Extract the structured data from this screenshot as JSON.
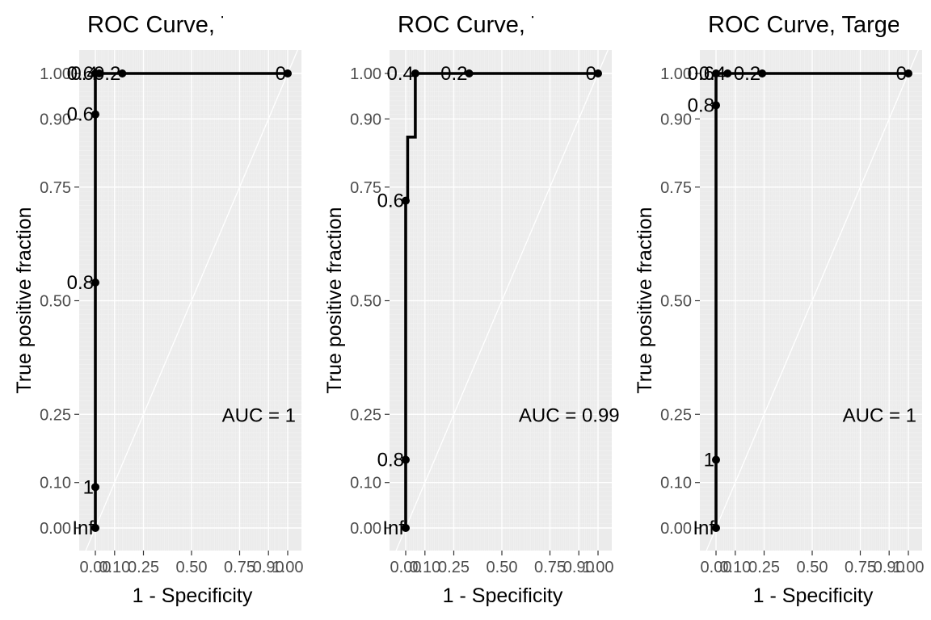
{
  "chart_data": [
    {
      "type": "line",
      "title": "ROC Curve, Target",
      "xlabel": "1 - Specificity",
      "ylabel": "True positive fraction",
      "xlim": [
        0,
        1
      ],
      "ylim": [
        0,
        1
      ],
      "x_ticks": [
        0.0,
        0.1,
        0.25,
        0.5,
        0.75,
        0.9,
        1.0
      ],
      "x_tick_labels": [
        "0.00",
        "0.10",
        "0.25",
        "0.50",
        "0.75",
        "0.90",
        "1.00"
      ],
      "y_ticks": [
        0.0,
        0.1,
        0.25,
        0.5,
        0.75,
        0.9,
        1.0
      ],
      "y_tick_labels": [
        "0.00",
        "0.10",
        "0.25",
        "0.50",
        "0.75",
        "0.90",
        "1.00"
      ],
      "auc_label": "AUC = 1",
      "curve": [
        [
          0,
          0
        ],
        [
          0,
          0.09
        ],
        [
          0,
          0.54
        ],
        [
          0,
          0.91
        ],
        [
          0,
          1.0
        ],
        [
          0.02,
          1.0
        ],
        [
          0.14,
          1.0
        ],
        [
          1.0,
          1.0
        ]
      ],
      "cutoff_labels": [
        {
          "x": 0,
          "y": 0.0,
          "label": "Inf"
        },
        {
          "x": 0,
          "y": 0.09,
          "label": "1"
        },
        {
          "x": 0,
          "y": 0.54,
          "label": "0.8"
        },
        {
          "x": 0,
          "y": 0.91,
          "label": "0.6"
        },
        {
          "x": 0,
          "y": 1.0,
          "label": "0.6"
        },
        {
          "x": 0.02,
          "y": 1.0,
          "label": "0.4"
        },
        {
          "x": 0.14,
          "y": 1.0,
          "label": "0.2"
        },
        {
          "x": 1.0,
          "y": 1.0,
          "label": "0"
        }
      ],
      "grid": true,
      "diagonal_reference": true
    },
    {
      "type": "line",
      "title": "ROC Curve, Target",
      "xlabel": "1 - Specificity",
      "ylabel": "True positive fraction",
      "xlim": [
        0,
        1
      ],
      "ylim": [
        0,
        1
      ],
      "x_ticks": [
        0.0,
        0.1,
        0.25,
        0.5,
        0.75,
        0.9,
        1.0
      ],
      "x_tick_labels": [
        "0.00",
        "0.10",
        "0.25",
        "0.50",
        "0.75",
        "0.90",
        "1.00"
      ],
      "y_ticks": [
        0.0,
        0.1,
        0.25,
        0.5,
        0.75,
        0.9,
        1.0
      ],
      "y_tick_labels": [
        "0.00",
        "0.10",
        "0.25",
        "0.50",
        "0.75",
        "0.90",
        "1.00"
      ],
      "auc_label": "AUC = 0.99",
      "curve": [
        [
          0,
          0
        ],
        [
          0,
          0.15
        ],
        [
          0,
          0.72
        ],
        [
          0.01,
          0.72
        ],
        [
          0.01,
          0.86
        ],
        [
          0.05,
          0.86
        ],
        [
          0.05,
          1.0
        ],
        [
          0.33,
          1.0
        ],
        [
          1.0,
          1.0
        ]
      ],
      "cutoff_labels": [
        {
          "x": 0,
          "y": 0.0,
          "label": "Inf"
        },
        {
          "x": 0,
          "y": 0.15,
          "label": "0.8"
        },
        {
          "x": 0,
          "y": 0.72,
          "label": "0.6"
        },
        {
          "x": 0.05,
          "y": 1.0,
          "label": "0.4"
        },
        {
          "x": 0.33,
          "y": 1.0,
          "label": "0.2"
        },
        {
          "x": 1.0,
          "y": 1.0,
          "label": "0"
        }
      ],
      "grid": true,
      "diagonal_reference": true
    },
    {
      "type": "line",
      "title": "ROC Curve, Target",
      "xlabel": "1 - Specificity",
      "ylabel": "True positive fraction",
      "xlim": [
        0,
        1
      ],
      "ylim": [
        0,
        1
      ],
      "x_ticks": [
        0.0,
        0.1,
        0.25,
        0.5,
        0.75,
        0.9,
        1.0
      ],
      "x_tick_labels": [
        "0.00",
        "0.10",
        "0.25",
        "0.50",
        "0.75",
        "0.90",
        "1.00"
      ],
      "y_ticks": [
        0.0,
        0.1,
        0.25,
        0.5,
        0.75,
        0.9,
        1.0
      ],
      "y_tick_labels": [
        "0.00",
        "0.10",
        "0.25",
        "0.50",
        "0.75",
        "0.90",
        "1.00"
      ],
      "auc_label": "AUC = 1",
      "curve": [
        [
          0,
          0
        ],
        [
          0,
          0.15
        ],
        [
          0,
          0.93
        ],
        [
          0,
          1.0
        ],
        [
          0.06,
          1.0
        ],
        [
          0.24,
          1.0
        ],
        [
          1.0,
          1.0
        ]
      ],
      "cutoff_labels": [
        {
          "x": 0,
          "y": 0.0,
          "label": "Inf"
        },
        {
          "x": 0,
          "y": 0.15,
          "label": "1"
        },
        {
          "x": 0,
          "y": 0.93,
          "label": "0.8"
        },
        {
          "x": 0,
          "y": 1.0,
          "label": "0.6"
        },
        {
          "x": 0.06,
          "y": 1.0,
          "label": "0.4"
        },
        {
          "x": 0.24,
          "y": 1.0,
          "label": "0.2"
        },
        {
          "x": 1.0,
          "y": 1.0,
          "label": "0"
        }
      ],
      "grid": true,
      "diagonal_reference": true
    }
  ],
  "colors": {
    "panel_background": "#ebebeb",
    "grid_major": "#ffffff",
    "curve": "#000000",
    "text": "#000000",
    "tick_text": "#4d4d4d"
  }
}
